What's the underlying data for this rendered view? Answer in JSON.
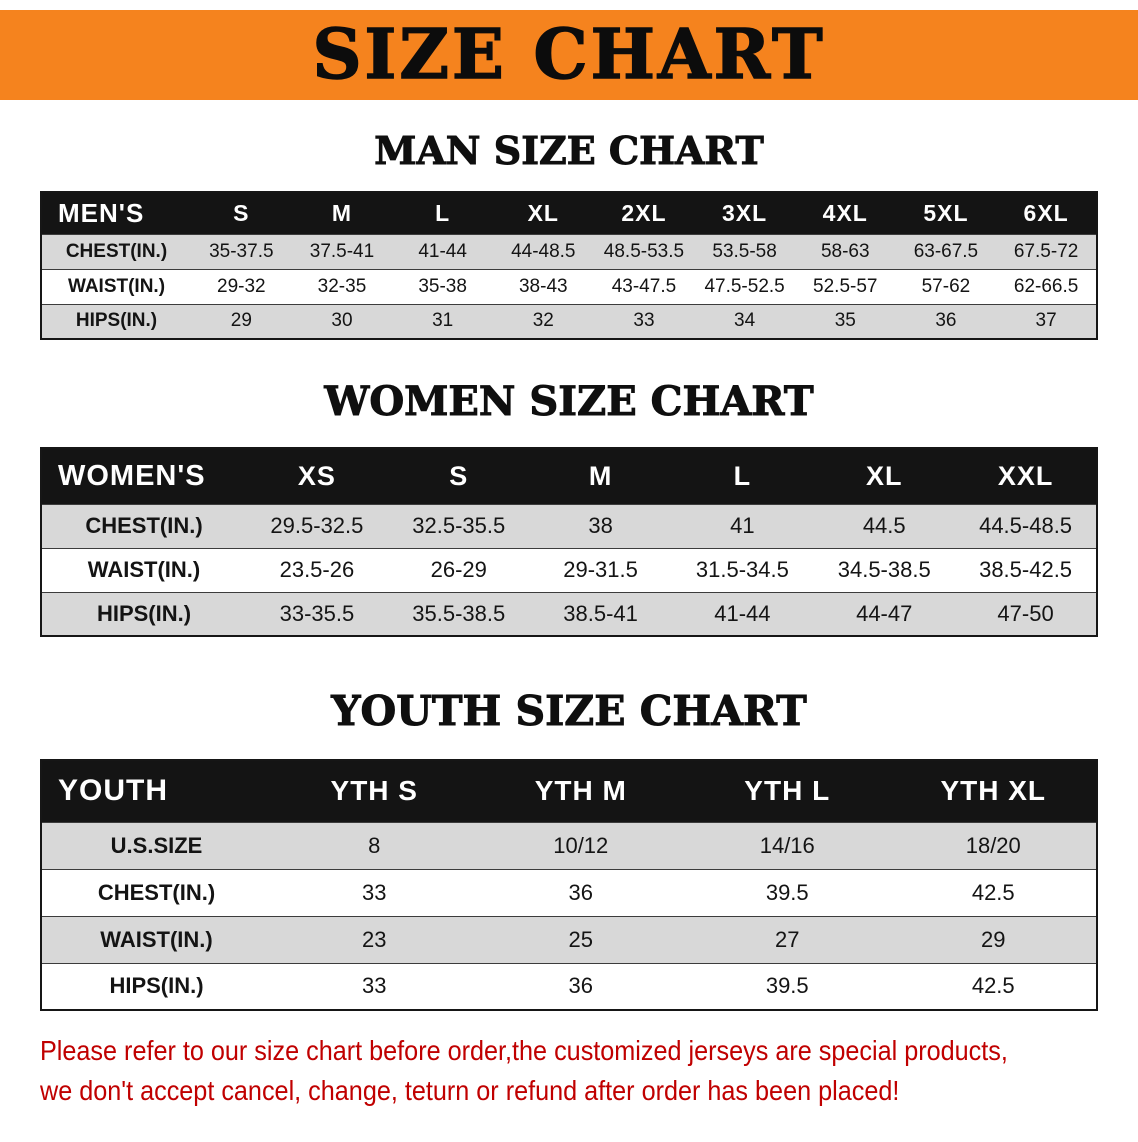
{
  "banner": {
    "title": "SIZE CHART"
  },
  "sections": [
    {
      "id": "men",
      "heading": "MAN SIZE CHART",
      "corner_label": "MEN'S",
      "columns": [
        "S",
        "M",
        "L",
        "XL",
        "2XL",
        "3XL",
        "4XL",
        "5XL",
        "6XL"
      ],
      "rows": [
        {
          "label": "CHEST(IN.)",
          "values": [
            "35-37.5",
            "37.5-41",
            "41-44",
            "44-48.5",
            "48.5-53.5",
            "53.5-58",
            "58-63",
            "63-67.5",
            "67.5-72"
          ]
        },
        {
          "label": "WAIST(IN.)",
          "values": [
            "29-32",
            "32-35",
            "35-38",
            "38-43",
            "43-47.5",
            "47.5-52.5",
            "52.5-57",
            "57-62",
            "62-66.5"
          ]
        },
        {
          "label": "HIPS(IN.)",
          "values": [
            "29",
            "30",
            "31",
            "32",
            "33",
            "34",
            "35",
            "36",
            "37"
          ]
        }
      ]
    },
    {
      "id": "women",
      "heading": "WOMEN SIZE CHART",
      "corner_label": "WOMEN'S",
      "columns": [
        "XS",
        "S",
        "M",
        "L",
        "XL",
        "XXL"
      ],
      "rows": [
        {
          "label": "CHEST(IN.)",
          "values": [
            "29.5-32.5",
            "32.5-35.5",
            "38",
            "41",
            "44.5",
            "44.5-48.5"
          ]
        },
        {
          "label": "WAIST(IN.)",
          "values": [
            "23.5-26",
            "26-29",
            "29-31.5",
            "31.5-34.5",
            "34.5-38.5",
            "38.5-42.5"
          ]
        },
        {
          "label": "HIPS(IN.)",
          "values": [
            "33-35.5",
            "35.5-38.5",
            "38.5-41",
            "41-44",
            "44-47",
            "47-50"
          ]
        }
      ]
    },
    {
      "id": "youth",
      "heading": "YOUTH SIZE CHART",
      "corner_label": "YOUTH",
      "columns": [
        "YTH S",
        "YTH M",
        "YTH L",
        "YTH XL"
      ],
      "rows": [
        {
          "label": "U.S.SIZE",
          "values": [
            "8",
            "10/12",
            "14/16",
            "18/20"
          ]
        },
        {
          "label": "CHEST(IN.)",
          "values": [
            "33",
            "36",
            "39.5",
            "42.5"
          ]
        },
        {
          "label": "WAIST(IN.)",
          "values": [
            "23",
            "25",
            "27",
            "29"
          ]
        },
        {
          "label": "HIPS(IN.)",
          "values": [
            "33",
            "36",
            "39.5",
            "42.5"
          ]
        }
      ]
    }
  ],
  "footer": {
    "line1": "Please refer to our size chart before order,the customized jerseys are special products,",
    "line2": "we don't accept cancel, change, teturn or refund after order has been placed!"
  },
  "colors": {
    "banner_bg": "#f5831e",
    "header_bg": "#141414",
    "row_alt_bg": "#d8d8d8",
    "footer_text": "#c00000"
  }
}
